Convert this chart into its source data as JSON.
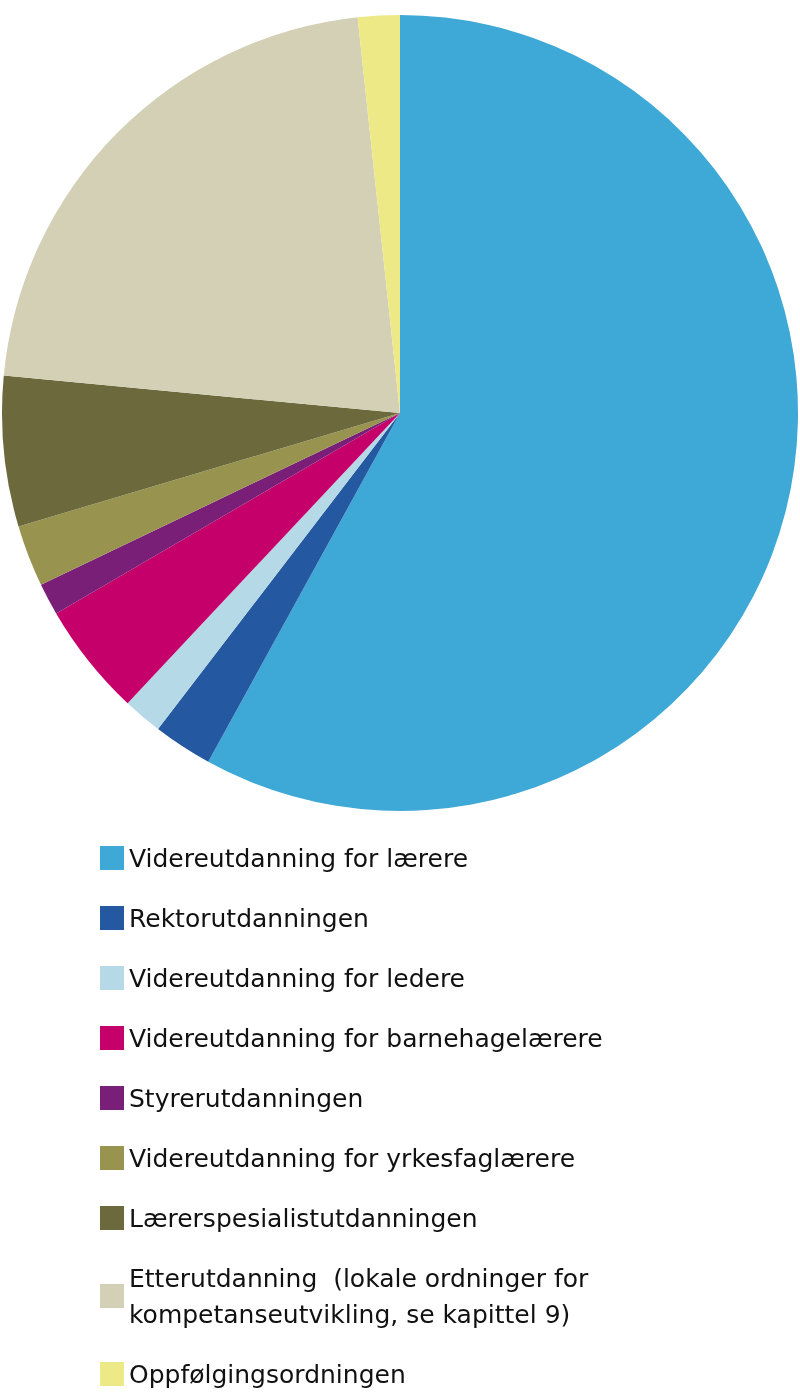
{
  "chart_data": {
    "type": "pie",
    "legend": "bottom",
    "categories": [
      "Videreutdanning for lærere",
      "Rektorutdanningen",
      "Videreutdanning for ledere",
      "Videreutdanning for barnehagelærere",
      "Styrerutdanningen",
      "Videreutdanning for yrkesfaglærere",
      "Lærerspesialistutdanningen",
      "Etterutdanning  (lokale ordninger for kompetanseutvikling, se kapittel 9)",
      "Oppfølgingsordningen"
    ],
    "values": [
      58.0,
      2.4,
      1.6,
      4.6,
      1.3,
      2.5,
      6.1,
      21.8,
      1.7
    ],
    "colors": [
      "#3ea8d6",
      "#2458a0",
      "#b5d9e6",
      "#c5006b",
      "#7a1f78",
      "#98944f",
      "#6c6a3c",
      "#d3d0b6",
      "#ede987"
    ]
  }
}
